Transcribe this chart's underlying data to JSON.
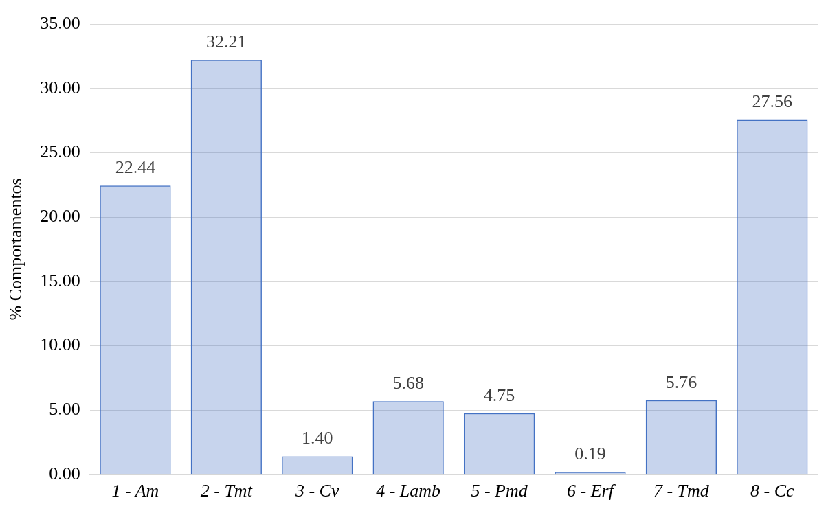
{
  "chart_data": {
    "type": "bar",
    "ylabel": "% Comportamentos",
    "categories": [
      "1 - Am",
      "2 - Tmt",
      "3 - Cv",
      "4 - Lamb",
      "5 - Pmd",
      "6 - Erf",
      "7 - Tmd",
      "8 - Cc"
    ],
    "values": [
      22.44,
      32.21,
      1.4,
      5.68,
      4.75,
      0.19,
      5.76,
      27.56
    ],
    "value_labels": [
      "22.44",
      "32.21",
      "1.40",
      "5.68",
      "4.75",
      "0.19",
      "5.76",
      "27.56"
    ],
    "color": "#4472c4",
    "ylim": [
      0,
      35
    ],
    "yticks": [
      {
        "value": 0,
        "label": "0.00"
      },
      {
        "value": 5,
        "label": "5.00"
      },
      {
        "value": 10,
        "label": "10.00"
      },
      {
        "value": 15,
        "label": "15.00"
      },
      {
        "value": 20,
        "label": "20.00"
      },
      {
        "value": 25,
        "label": "25.00"
      },
      {
        "value": 30,
        "label": "30.00"
      },
      {
        "value": 35,
        "label": "35.00"
      }
    ],
    "grid": "y",
    "legend": false
  }
}
